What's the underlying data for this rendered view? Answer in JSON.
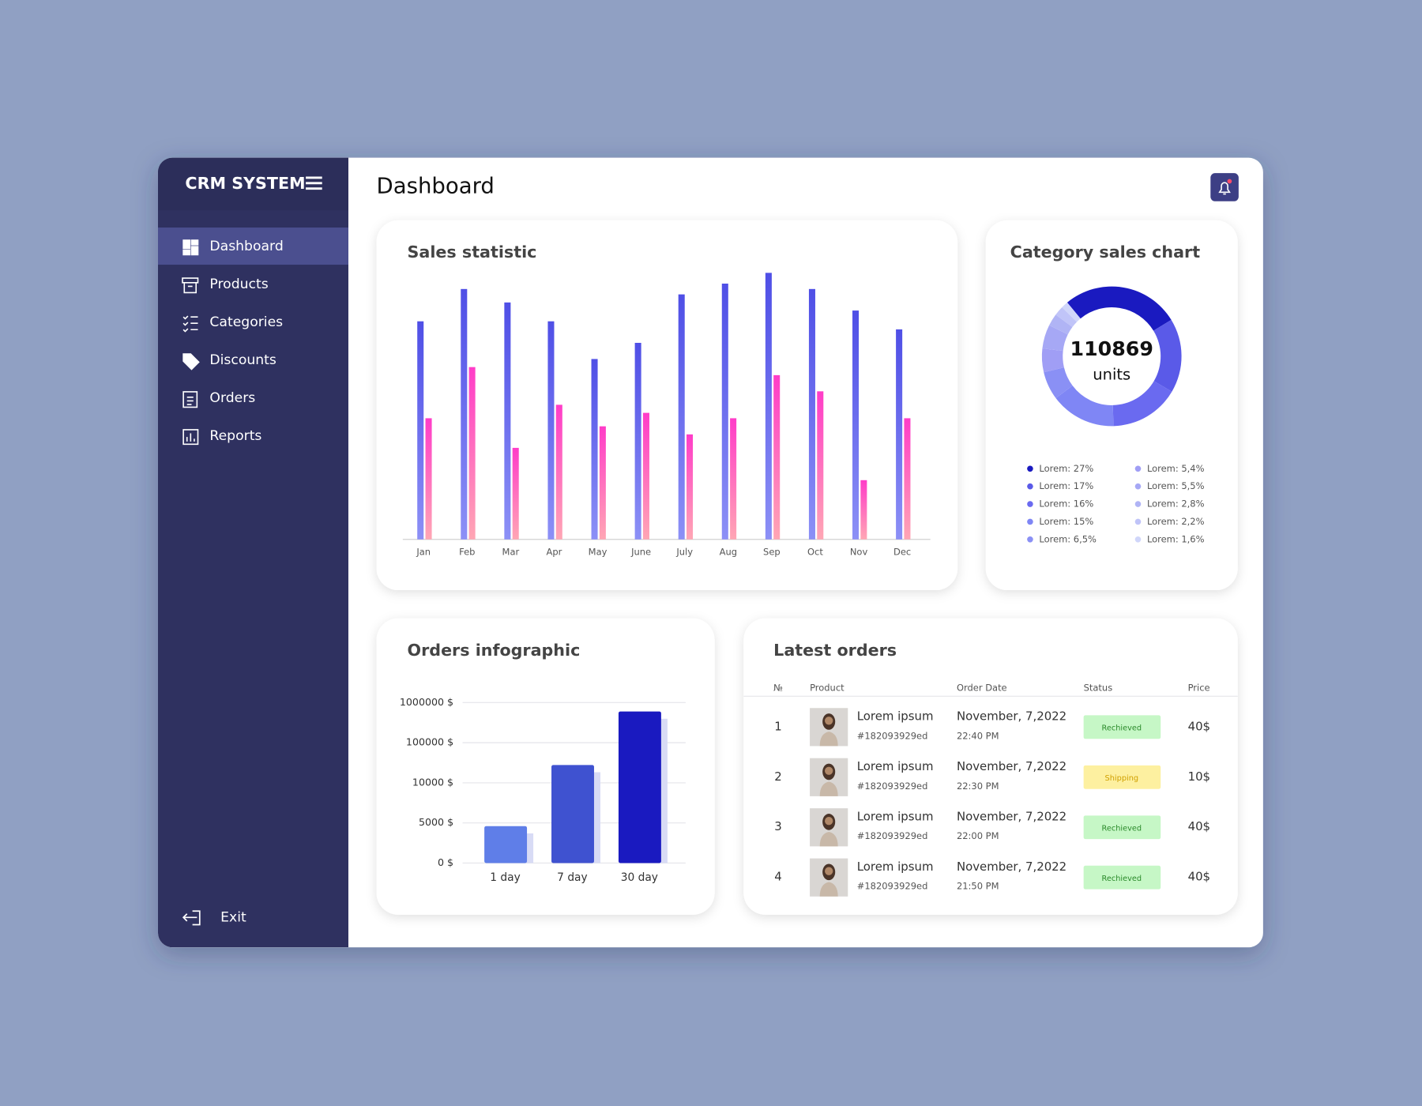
{
  "sidebar": {
    "brand": "CRM SYSTEM",
    "menu": [
      "Dashboard",
      "Products",
      "Categories",
      "Discounts",
      "Orders",
      "Reports"
    ],
    "exit": "Exit"
  },
  "header": {
    "title": "Dashboard"
  },
  "chart_data": [
    {
      "type": "bar",
      "title": "Sales statistic",
      "categories": [
        "Jan",
        "Feb",
        "Mar",
        "Apr",
        "May",
        "June",
        "July",
        "Aug",
        "Sep",
        "Oct",
        "Nov",
        "Dec"
      ],
      "series": [
        {
          "color": "#5558ea",
          "values": [
            81,
            93,
            88,
            81,
            67,
            73,
            91,
            95,
            99,
            93,
            85,
            78
          ]
        },
        {
          "color": "#ff4fc0",
          "values": [
            45,
            64,
            34,
            50,
            42,
            47,
            39,
            45,
            61,
            55,
            22,
            45
          ]
        }
      ],
      "ylim": [
        0,
        100
      ]
    },
    {
      "type": "pie",
      "title": "Category sales chart",
      "center_value": 110869,
      "center_label": "units",
      "values": [
        27,
        17,
        16,
        15,
        6.5,
        5.4,
        5.5,
        2.8,
        2.2,
        1.6
      ],
      "value_labels": [
        "Lorem: 27%",
        "Lorem: 17%",
        "Lorem: 16%",
        "Lorem: 15%",
        "Lorem: 6,5%",
        "Lorem: 5,4%",
        "Lorem: 5,5%",
        "Lorem: 2,8%",
        "Lorem: 2,2%",
        "Lorem: 1,6%"
      ],
      "colors": [
        "#1a1ac0",
        "#5a5ae8",
        "#6a6af0",
        "#7f86f5",
        "#8a90f5",
        "#a09ef5",
        "#a6a8f5",
        "#b0b4f5",
        "#c0c4f8",
        "#d0d6fa"
      ]
    },
    {
      "type": "bar",
      "title": "Orders infographic",
      "categories": [
        "1 day",
        "7 day",
        "30 day"
      ],
      "values": [
        4600,
        50000,
        800000
      ],
      "colors": [
        "#5f7ee8",
        "#3f52d0",
        "#1a1ac0"
      ],
      "ylim": [
        0,
        1000000
      ],
      "yticks": [
        {
          "value": 0,
          "label": "0 $"
        },
        {
          "value": 5000,
          "label": "5000 $"
        },
        {
          "value": 10000,
          "label": "10000 $"
        },
        {
          "value": 100000,
          "label": "100000 $"
        },
        {
          "value": 1000000,
          "label": "1000000 $"
        }
      ],
      "grid": true
    }
  ],
  "orders_table": {
    "title": "Latest orders",
    "columns": [
      "№",
      "Product",
      "Order Date",
      "Status",
      "Price"
    ],
    "rows": [
      {
        "no": 1,
        "product": "Lorem ipsum",
        "sku": "#182093929ed",
        "date": "November, 7,2022",
        "time": "22:40 PM",
        "status": "Rechieved",
        "price": "40$"
      },
      {
        "no": 2,
        "product": "Lorem ipsum",
        "sku": "#182093929ed",
        "date": "November, 7,2022",
        "time": "22:30 PM",
        "status": "Shipping",
        "price": "10$"
      },
      {
        "no": 3,
        "product": "Lorem ipsum",
        "sku": "#182093929ed",
        "date": "November, 7,2022",
        "time": "22:00 PM",
        "status": "Rechieved",
        "price": "40$"
      },
      {
        "no": 4,
        "product": "Lorem ipsum",
        "sku": "#182093929ed",
        "date": "November, 7,2022",
        "time": "21:50 PM",
        "status": "Rechieved",
        "price": "40$"
      }
    ]
  }
}
